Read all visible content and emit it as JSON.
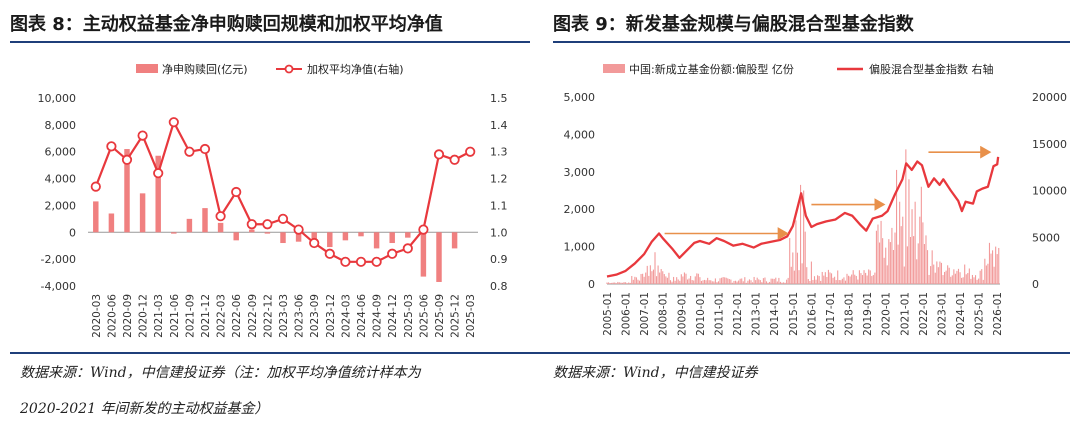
{
  "left_title": "图表 8：主动权益基金净申购赎回规模和加权平均净值",
  "right_title": "图表 9：新发基金规模与偏股混合型基金指数",
  "left_source_line1": "数据来源：Wind，中信建投证券（注：加权平均净值统计样本为",
  "left_source_line2": "2020-2021 年间新发的主动权益基金）",
  "right_source": "数据来源：Wind，中信建投证券",
  "colors": {
    "bar": "#f08080",
    "line": "#e8383d",
    "rule": "#1f3f7a",
    "arrow": "#e8904a",
    "bar_right": "#f29a9a"
  },
  "chart_data": [
    {
      "type": "bar",
      "categories": [
        "2020-03",
        "2020-06",
        "2020-09",
        "2020-12",
        "2021-03",
        "2021-06",
        "2021-09",
        "2021-12",
        "2022-03",
        "2022-06",
        "2022-09",
        "2022-12",
        "2023-03",
        "2023-06",
        "2023-09",
        "2023-12",
        "2024-03",
        "2024-06",
        "2024-09",
        "2024-12",
        "2025-03",
        "2025-06",
        "2025-09",
        "2025-12",
        "2025-03"
      ],
      "series": [
        {
          "name": "净申购赎回(亿元)",
          "type": "bar",
          "axis": "left",
          "values": [
            2300,
            1400,
            6200,
            2900,
            5700,
            -100,
            1000,
            1800,
            700,
            -600,
            200,
            -100,
            -800,
            -700,
            -900,
            -1100,
            -600,
            -300,
            -1200,
            -800,
            -400,
            -3300,
            -3700,
            -1200,
            null
          ]
        },
        {
          "name": "加权平均净值(右轴)",
          "type": "line",
          "axis": "right",
          "values": [
            1.17,
            1.32,
            1.27,
            1.36,
            1.22,
            1.41,
            1.3,
            1.31,
            1.06,
            1.15,
            1.03,
            1.03,
            1.05,
            1.01,
            0.96,
            0.92,
            0.89,
            0.89,
            0.89,
            0.92,
            0.94,
            1.01,
            1.29,
            1.27,
            1.3
          ]
        }
      ],
      "yleft_ticks": [
        "10,000",
        "8,000",
        "6,000",
        "4,000",
        "2,000",
        "0",
        "-2,000",
        "-4,000"
      ],
      "yright_ticks": [
        "1.5",
        "1.4",
        "1.3",
        "1.2",
        "1.1",
        "1.0",
        "0.9",
        "0.8"
      ],
      "yleft_lim": [
        -4000,
        10000
      ],
      "yright_lim": [
        0.8,
        1.5
      ],
      "legend": [
        "净申购赎回(亿元)",
        "加权平均净值(右轴)"
      ],
      "legend_position": "top",
      "grid": false
    },
    {
      "type": "bar",
      "x_ticks": [
        "2005-01",
        "2006-01",
        "2007-01",
        "2008-01",
        "2009-01",
        "2010-01",
        "2011-01",
        "2012-01",
        "2013-01",
        "2014-01",
        "2015-01",
        "2016-01",
        "2017-01",
        "2018-01",
        "2019-01",
        "2020-01",
        "2021-01",
        "2022-01",
        "2023-01",
        "2024-01",
        "2025-01",
        "2026-01"
      ],
      "series": [
        {
          "name": "中国:新成立基金份额:偏股型 亿份",
          "type": "bar",
          "axis": "left"
        },
        {
          "name": "偏股混合型基金指数 右轴",
          "type": "line",
          "axis": "right",
          "points": [
            [
              2005.0,
              800
            ],
            [
              2005.5,
              1000
            ],
            [
              2006.0,
              1400
            ],
            [
              2006.5,
              2200
            ],
            [
              2007.0,
              3200
            ],
            [
              2007.4,
              4500
            ],
            [
              2007.8,
              5400
            ],
            [
              2008.0,
              4900
            ],
            [
              2008.5,
              3800
            ],
            [
              2008.9,
              2800
            ],
            [
              2009.3,
              3600
            ],
            [
              2009.7,
              4400
            ],
            [
              2010.0,
              4600
            ],
            [
              2010.5,
              4300
            ],
            [
              2010.9,
              4900
            ],
            [
              2011.3,
              4600
            ],
            [
              2011.8,
              4100
            ],
            [
              2012.3,
              4300
            ],
            [
              2012.9,
              3900
            ],
            [
              2013.3,
              4300
            ],
            [
              2013.8,
              4500
            ],
            [
              2014.3,
              4700
            ],
            [
              2014.7,
              5100
            ],
            [
              2015.0,
              6200
            ],
            [
              2015.45,
              9700
            ],
            [
              2015.7,
              7300
            ],
            [
              2016.0,
              6100
            ],
            [
              2016.3,
              6400
            ],
            [
              2016.8,
              6700
            ],
            [
              2017.3,
              6900
            ],
            [
              2017.8,
              7600
            ],
            [
              2018.2,
              7300
            ],
            [
              2018.6,
              6400
            ],
            [
              2018.95,
              5700
            ],
            [
              2019.3,
              7000
            ],
            [
              2019.8,
              7300
            ],
            [
              2020.1,
              7800
            ],
            [
              2020.5,
              9600
            ],
            [
              2020.9,
              11200
            ],
            [
              2021.1,
              12900
            ],
            [
              2021.4,
              12200
            ],
            [
              2021.7,
              13100
            ],
            [
              2021.95,
              12700
            ],
            [
              2022.3,
              10400
            ],
            [
              2022.6,
              11300
            ],
            [
              2022.9,
              10600
            ],
            [
              2023.1,
              11200
            ],
            [
              2023.5,
              10000
            ],
            [
              2023.9,
              8900
            ],
            [
              2024.1,
              7800
            ],
            [
              2024.3,
              8800
            ],
            [
              2024.7,
              8600
            ],
            [
              2024.9,
              9900
            ],
            [
              2025.2,
              10200
            ],
            [
              2025.5,
              10400
            ],
            [
              2025.8,
              12600
            ],
            [
              2026.0,
              12800
            ],
            [
              2026.05,
              13600
            ]
          ]
        }
      ],
      "yleft_ticks": [
        "5,000",
        "4,000",
        "3,000",
        "2,000",
        "1,000",
        "0"
      ],
      "yright_ticks": [
        "20000",
        "15000",
        "10000",
        "5000",
        "0"
      ],
      "yleft_lim": [
        0,
        5000
      ],
      "yright_lim": [
        0,
        20000
      ],
      "legend": [
        "中国:新成立基金份额:偏股型 亿份",
        "偏股混合型基金指数 右轴"
      ],
      "legend_position": "top",
      "grid": false
    }
  ]
}
